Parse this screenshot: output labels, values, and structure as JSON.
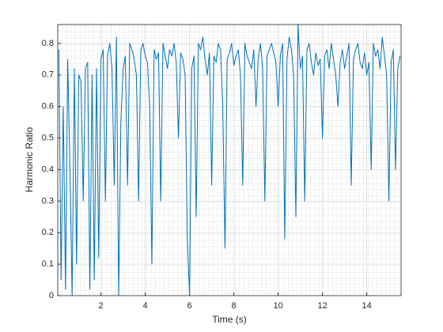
{
  "chart_data": {
    "type": "line",
    "xlabel": "Time (s)",
    "ylabel": "Harmonic Ratio",
    "x": [
      0.1,
      0.2,
      0.3,
      0.4,
      0.5,
      0.6,
      0.7,
      0.8,
      0.9,
      1.0,
      1.1,
      1.2,
      1.3,
      1.4,
      1.5,
      1.6,
      1.7,
      1.8,
      1.9,
      2.0,
      2.1,
      2.2,
      2.3,
      2.4,
      2.5,
      2.6,
      2.7,
      2.8,
      2.9,
      3.0,
      3.1,
      3.2,
      3.3,
      3.4,
      3.5,
      3.6,
      3.7,
      3.8,
      3.9,
      4.0,
      4.1,
      4.2,
      4.3,
      4.4,
      4.5,
      4.6,
      4.7,
      4.8,
      4.9,
      5.0,
      5.1,
      5.2,
      5.3,
      5.4,
      5.5,
      5.6,
      5.7,
      5.8,
      5.9,
      6.0,
      6.1,
      6.2,
      6.3,
      6.4,
      6.5,
      6.6,
      6.7,
      6.8,
      6.9,
      7.0,
      7.1,
      7.2,
      7.3,
      7.4,
      7.5,
      7.6,
      7.7,
      7.8,
      7.9,
      8.0,
      8.1,
      8.2,
      8.3,
      8.4,
      8.5,
      8.6,
      8.7,
      8.8,
      8.9,
      9.0,
      9.1,
      9.2,
      9.3,
      9.4,
      9.5,
      9.6,
      9.7,
      9.8,
      9.9,
      10.0,
      10.1,
      10.2,
      10.3,
      10.4,
      10.5,
      10.6,
      10.7,
      10.8,
      10.9,
      11.0,
      11.1,
      11.2,
      11.3,
      11.4,
      11.5,
      11.6,
      11.7,
      11.8,
      11.9,
      12.0,
      12.1,
      12.2,
      12.3,
      12.4,
      12.5,
      12.6,
      12.7,
      12.8,
      12.9,
      13.0,
      13.1,
      13.2,
      13.3,
      13.4,
      13.5,
      13.6,
      13.7,
      13.8,
      13.9,
      14.0,
      14.1,
      14.2,
      14.3,
      14.4,
      14.5,
      14.6,
      14.7,
      14.8,
      14.9,
      15.0,
      15.1,
      15.2,
      15.3,
      15.4,
      15.5
    ],
    "series": [
      {
        "name": "Harmonic Ratio",
        "color": "#0072bd",
        "values": [
          0.78,
          0.05,
          0.6,
          0.02,
          0.75,
          0.4,
          0.0,
          0.72,
          0.1,
          0.7,
          0.68,
          0.3,
          0.72,
          0.74,
          0.02,
          0.7,
          0.05,
          0.72,
          0.12,
          0.75,
          0.78,
          0.3,
          0.76,
          0.8,
          0.72,
          0.35,
          0.82,
          0.0,
          0.55,
          0.72,
          0.76,
          0.35,
          0.8,
          0.78,
          0.75,
          0.7,
          0.3,
          0.78,
          0.8,
          0.76,
          0.74,
          0.6,
          0.1,
          0.78,
          0.75,
          0.77,
          0.3,
          0.8,
          0.76,
          0.72,
          0.78,
          0.76,
          0.8,
          0.74,
          0.5,
          0.77,
          0.75,
          0.7,
          0.18,
          0.0,
          0.72,
          0.76,
          0.25,
          0.8,
          0.78,
          0.82,
          0.75,
          0.7,
          0.77,
          0.35,
          0.76,
          0.74,
          0.8,
          0.78,
          0.6,
          0.15,
          0.75,
          0.77,
          0.8,
          0.73,
          0.76,
          0.78,
          0.7,
          0.35,
          0.8,
          0.76,
          0.74,
          0.72,
          0.78,
          0.6,
          0.75,
          0.8,
          0.72,
          0.3,
          0.76,
          0.78,
          0.8,
          0.77,
          0.74,
          0.6,
          0.76,
          0.8,
          0.18,
          0.75,
          0.82,
          0.78,
          0.7,
          0.25,
          0.86,
          0.72,
          0.76,
          0.3,
          0.78,
          0.8,
          0.74,
          0.7,
          0.77,
          0.73,
          0.75,
          0.5,
          0.76,
          0.78,
          0.72,
          0.8,
          0.75,
          0.7,
          0.6,
          0.74,
          0.78,
          0.72,
          0.76,
          0.8,
          0.35,
          0.75,
          0.78,
          0.8,
          0.74,
          0.72,
          0.77,
          0.7,
          0.74,
          0.4,
          0.8,
          0.76,
          0.78,
          0.72,
          0.82,
          0.76,
          0.7,
          0.3,
          0.74,
          0.78,
          0.4,
          0.72,
          0.76
        ]
      }
    ],
    "xlim": [
      0.05,
      15.55
    ],
    "xticks": [
      2,
      4,
      6,
      8,
      10,
      12,
      14
    ],
    "ylim": [
      0,
      0.86
    ],
    "yticks": [
      0,
      0.1,
      0.2,
      0.3,
      0.4,
      0.5,
      0.6,
      0.7,
      0.8
    ],
    "grid": true,
    "minor_grid": true
  }
}
